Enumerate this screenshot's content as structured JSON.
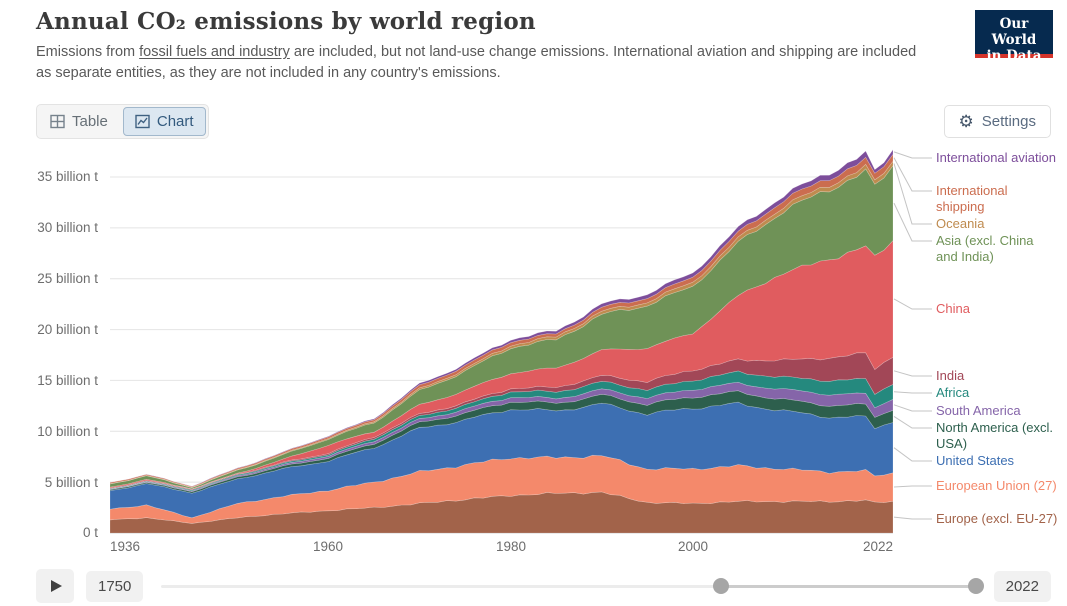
{
  "header": {
    "title": "Annual CO₂ emissions by world region",
    "subtitle_pre": "Emissions from ",
    "subtitle_link": "fossil fuels and industry",
    "subtitle_post": " are included, but not land-use change emissions. International aviation and shipping are included as separate entities, as they are not included in any country's emissions.",
    "logo": {
      "line1": "Our World",
      "line2": "in Data",
      "bg": "#062A4F",
      "accent": "#D5342B"
    }
  },
  "toolbar": {
    "tabs": [
      {
        "label": "Table",
        "active": false
      },
      {
        "label": "Chart",
        "active": true
      }
    ],
    "settings_label": "Settings"
  },
  "chart_data": {
    "type": "area",
    "stacked": true,
    "title": "Annual CO₂ emissions by world region",
    "unit": "billion tonnes CO₂",
    "xlim": [
      1936,
      2022
    ],
    "ylim": [
      0,
      35
    ],
    "grid": "horizontal",
    "legend_position": "right",
    "x": [
      1936,
      1940,
      1945,
      1950,
      1955,
      1960,
      1965,
      1970,
      1975,
      1980,
      1985,
      1990,
      1995,
      2000,
      2005,
      2010,
      2015,
      2019,
      2020,
      2022
    ],
    "series": [
      {
        "name": "Europe (excl. EU-27)",
        "color": "#A2634A",
        "values": [
          1.3,
          1.5,
          0.95,
          1.5,
          1.9,
          2.2,
          2.5,
          2.9,
          3.3,
          3.7,
          3.9,
          4.0,
          3.0,
          2.9,
          3.1,
          3.1,
          3.1,
          3.2,
          3.0,
          3.1
        ]
      },
      {
        "name": "European Union (27)",
        "color": "#F4896B",
        "values": [
          1.05,
          1.25,
          0.55,
          1.4,
          1.7,
          2.0,
          2.5,
          3.1,
          3.4,
          3.7,
          3.5,
          3.6,
          3.3,
          3.4,
          3.5,
          3.2,
          2.9,
          2.9,
          2.6,
          2.8
        ]
      },
      {
        "name": "United States",
        "color": "#3D6FB2",
        "values": [
          1.8,
          2.1,
          2.45,
          2.4,
          2.7,
          2.9,
          3.4,
          4.3,
          4.4,
          4.8,
          4.6,
          5.1,
          5.4,
          6.0,
          6.1,
          5.7,
          5.4,
          5.3,
          4.7,
          5.1
        ]
      },
      {
        "name": "North America (excl. USA)",
        "color": "#2D5F4D",
        "values": [
          0.1,
          0.12,
          0.15,
          0.2,
          0.25,
          0.3,
          0.4,
          0.55,
          0.65,
          0.75,
          0.75,
          0.85,
          0.95,
          1.1,
          1.15,
          1.1,
          1.15,
          1.2,
          1.1,
          1.2
        ]
      },
      {
        "name": "South America",
        "color": "#8565A9",
        "values": [
          0.05,
          0.06,
          0.08,
          0.11,
          0.15,
          0.2,
          0.25,
          0.32,
          0.4,
          0.45,
          0.45,
          0.55,
          0.65,
          0.75,
          0.85,
          1.0,
          1.1,
          1.05,
          0.95,
          1.05
        ]
      },
      {
        "name": "Africa",
        "color": "#25897E",
        "values": [
          0.05,
          0.06,
          0.08,
          0.1,
          0.13,
          0.15,
          0.25,
          0.3,
          0.4,
          0.55,
          0.65,
          0.75,
          0.8,
          0.9,
          1.1,
          1.2,
          1.35,
          1.45,
          1.35,
          1.45
        ]
      },
      {
        "name": "India",
        "color": "#A24757",
        "values": [
          0.05,
          0.06,
          0.07,
          0.07,
          0.09,
          0.12,
          0.17,
          0.2,
          0.25,
          0.3,
          0.45,
          0.6,
          0.8,
          1.0,
          1.2,
          1.7,
          2.2,
          2.6,
          2.4,
          2.7
        ]
      },
      {
        "name": "China",
        "color": "#E05C5F",
        "values": [
          0.1,
          0.12,
          0.04,
          0.08,
          0.3,
          0.8,
          0.5,
          0.9,
          1.2,
          1.5,
          1.9,
          2.5,
          3.3,
          3.6,
          6.3,
          8.6,
          9.7,
          10.5,
          10.9,
          11.4
        ]
      },
      {
        "name": "Asia (excl. China and India)",
        "color": "#6F9257",
        "values": [
          0.3,
          0.35,
          0.12,
          0.3,
          0.45,
          0.6,
          0.9,
          1.4,
          1.9,
          2.5,
          2.8,
          3.5,
          4.2,
          4.6,
          5.2,
          6.1,
          6.9,
          7.3,
          7.0,
          7.3
        ]
      },
      {
        "name": "Oceania",
        "color": "#BF8B4F",
        "values": [
          0.03,
          0.035,
          0.04,
          0.06,
          0.08,
          0.1,
          0.13,
          0.17,
          0.2,
          0.25,
          0.27,
          0.3,
          0.33,
          0.4,
          0.42,
          0.44,
          0.44,
          0.45,
          0.43,
          0.45
        ]
      },
      {
        "name": "International shipping",
        "color": "#CB6D4F",
        "values": [
          0.12,
          0.1,
          0.08,
          0.12,
          0.14,
          0.16,
          0.2,
          0.3,
          0.33,
          0.35,
          0.3,
          0.38,
          0.42,
          0.5,
          0.57,
          0.64,
          0.66,
          0.7,
          0.65,
          0.7
        ]
      },
      {
        "name": "International aviation",
        "color": "#7D4E9B",
        "values": [
          0.01,
          0.01,
          0.02,
          0.03,
          0.04,
          0.06,
          0.09,
          0.17,
          0.2,
          0.23,
          0.27,
          0.33,
          0.36,
          0.42,
          0.46,
          0.46,
          0.54,
          0.62,
          0.35,
          0.45
        ]
      }
    ],
    "y_tick_values": [
      0,
      5,
      10,
      15,
      20,
      25,
      30,
      35
    ],
    "y_tick_labels": [
      "0 t",
      "5 billion t",
      "10 billion t",
      "15 billion t",
      "20 billion t",
      "25 billion t",
      "30 billion t",
      "35 billion t"
    ],
    "x_tick_labels": [
      "1936",
      "1960",
      "1980",
      "2000",
      "2022"
    ]
  },
  "timeline": {
    "start_label": "1750",
    "end_label": "2022"
  }
}
